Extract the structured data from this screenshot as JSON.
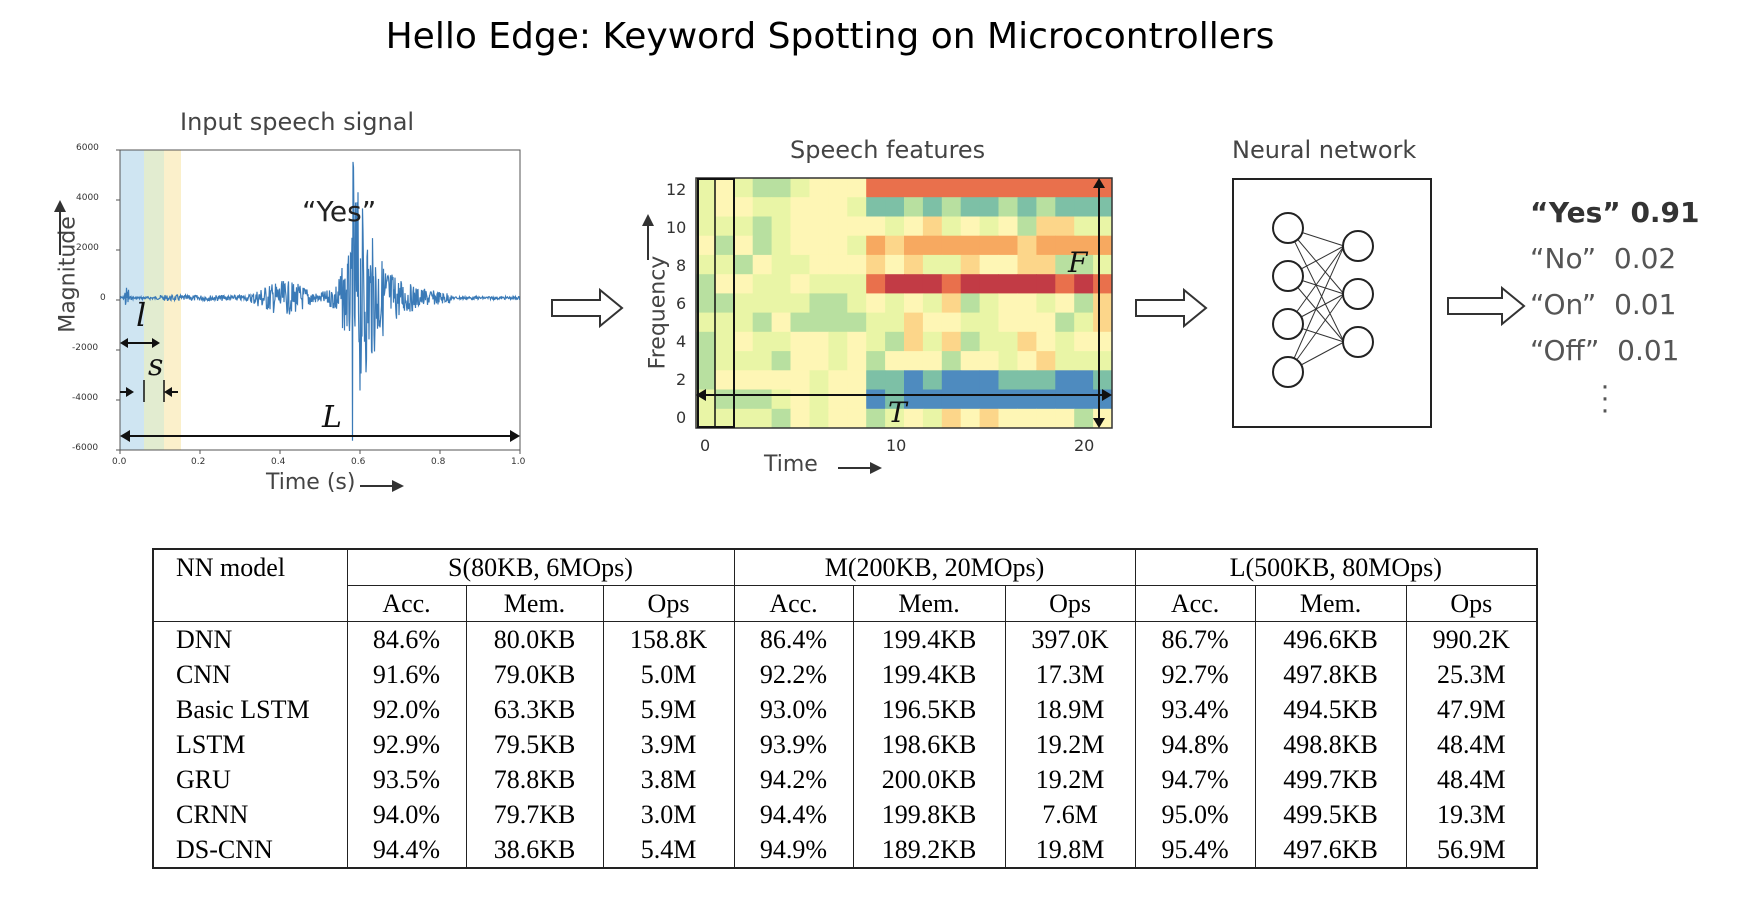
{
  "title": "Hello Edge: Keyword Spotting on Microcontrollers",
  "waveform": {
    "title": "Input speech signal",
    "xlabel": "Time (s)",
    "ylabel": "Magnitude",
    "yticks": [
      "6000",
      "4000",
      "2000",
      "0",
      "-2000",
      "-4000",
      "-6000"
    ],
    "xticks": [
      "0.0",
      "0.2",
      "0.4",
      "0.6",
      "0.8",
      "1.0"
    ],
    "annotation_word": "“Yes”",
    "symbols": {
      "l": "l",
      "s": "s",
      "L": "L"
    }
  },
  "features": {
    "title": "Speech features",
    "xlabel": "Time",
    "ylabel": "Frequency",
    "yticks": [
      "12",
      "10",
      "8",
      "6",
      "4",
      "2",
      "0"
    ],
    "xticks": [
      "0",
      "10",
      "20"
    ],
    "symbols": {
      "F": "F",
      "T": "T"
    }
  },
  "network": {
    "title": "Neural network"
  },
  "outputs": [
    {
      "label": "“Yes”",
      "score": "0.91"
    },
    {
      "label": "“No”",
      "score": "0.02"
    },
    {
      "label": "“On”",
      "score": "0.01"
    },
    {
      "label": "“Off”",
      "score": "0.01"
    }
  ],
  "table": {
    "model_header": "NN model",
    "groups": [
      "S(80KB, 6MOps)",
      "M(200KB, 20MOps)",
      "L(500KB, 80MOps)"
    ],
    "subheaders": [
      "Acc.",
      "Mem.",
      "Ops"
    ],
    "rows": [
      {
        "model": "DNN",
        "values": [
          "84.6%",
          "80.0KB",
          "158.8K",
          "86.4%",
          "199.4KB",
          "397.0K",
          "86.7%",
          "496.6KB",
          "990.2K"
        ]
      },
      {
        "model": "CNN",
        "values": [
          "91.6%",
          "79.0KB",
          "5.0M",
          "92.2%",
          "199.4KB",
          "17.3M",
          "92.7%",
          "497.8KB",
          "25.3M"
        ]
      },
      {
        "model": "Basic LSTM",
        "values": [
          "92.0%",
          "63.3KB",
          "5.9M",
          "93.0%",
          "196.5KB",
          "18.9M",
          "93.4%",
          "494.5KB",
          "47.9M"
        ]
      },
      {
        "model": "LSTM",
        "values": [
          "92.9%",
          "79.5KB",
          "3.9M",
          "93.9%",
          "198.6KB",
          "19.2M",
          "94.8%",
          "498.8KB",
          "48.4M"
        ]
      },
      {
        "model": "GRU",
        "values": [
          "93.5%",
          "78.8KB",
          "3.8M",
          "94.2%",
          "200.0KB",
          "19.2M",
          "94.7%",
          "499.7KB",
          "48.4M"
        ]
      },
      {
        "model": "CRNN",
        "values": [
          "94.0%",
          "79.7KB",
          "3.0M",
          "94.4%",
          "199.8KB",
          "7.6M",
          "95.0%",
          "499.5KB",
          "19.3M"
        ]
      },
      {
        "model": "DS-CNN",
        "values": [
          "94.4%",
          "38.6KB",
          "5.4M",
          "94.9%",
          "189.2KB",
          "19.8M",
          "95.4%",
          "497.6KB",
          "56.9M"
        ]
      }
    ]
  },
  "colors": {
    "waveform": "#3a7ab7",
    "window_l": "#cfe5f2",
    "window_s": "#e2ecd0",
    "window_extra": "#fbf0cb"
  }
}
